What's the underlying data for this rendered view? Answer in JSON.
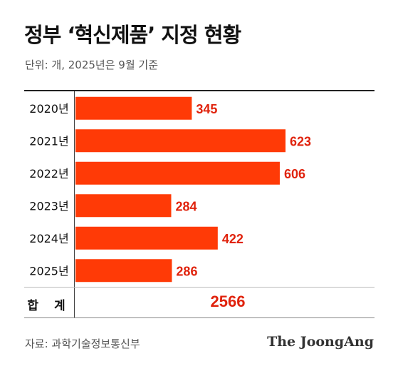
{
  "chart_data": {
    "type": "bar",
    "orientation": "horizontal",
    "title": "정부 ‘혁신제품’ 지정 현황",
    "subtitle": "단위: 개, 2025년은 9월 기준",
    "categories": [
      "2020년",
      "2021년",
      "2022년",
      "2023년",
      "2024년",
      "2025년"
    ],
    "values": [
      345,
      623,
      606,
      284,
      422,
      286
    ],
    "xlim": [
      0,
      700
    ],
    "grid": false,
    "bar_color": "#ff3a06",
    "label_color": "#e0230d",
    "total_label": "합 계",
    "total_value": "2566"
  },
  "footer": {
    "source": "자료: 과학기술정보통신부",
    "brand": "The JoongAng"
  }
}
